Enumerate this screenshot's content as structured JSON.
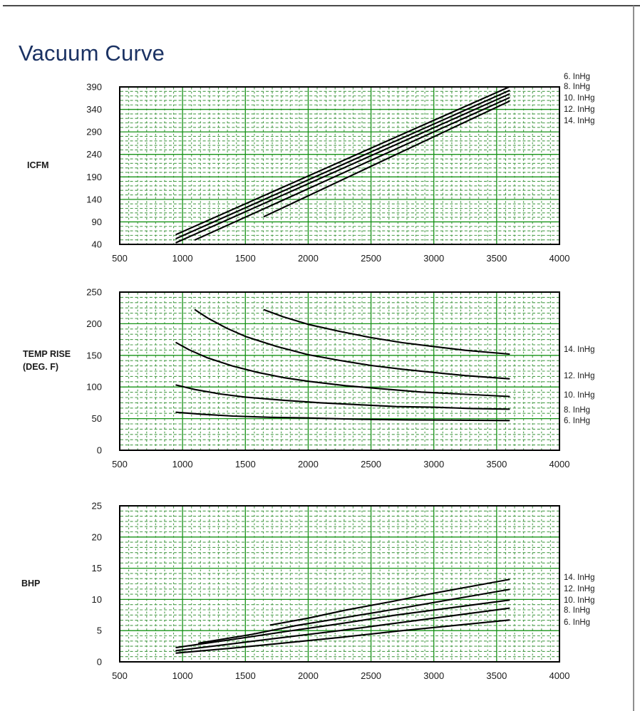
{
  "page": {
    "title": "Vacuum Curve",
    "title_color": "#1b3263"
  },
  "colors": {
    "grid_major": "#169216",
    "grid_minor": "#4d9e4d",
    "curve": "#000000",
    "plot_border": "#000000",
    "text": "#1a1a1a",
    "rule_top": "#4a4a4a",
    "rule_right": "#8f8f8f"
  },
  "chart_data": [
    {
      "type": "line",
      "ylabel_lines": [
        "ICFM"
      ],
      "xlabel": "",
      "xlim": [
        500,
        4000
      ],
      "ylim": [
        40,
        390
      ],
      "xticks": [
        500,
        1000,
        1500,
        2000,
        2500,
        3000,
        3500,
        4000
      ],
      "yticks": [
        40,
        90,
        140,
        190,
        240,
        290,
        340,
        390
      ],
      "grid": "green graph paper, solid majors + dashed minors",
      "legend_position": "right-top",
      "series": [
        {
          "label": "6. InHg",
          "points": [
            [
              950,
              62
            ],
            [
              3600,
              390
            ]
          ]
        },
        {
          "label": "8. InHg",
          "points": [
            [
              950,
              53
            ],
            [
              3600,
              382
            ]
          ]
        },
        {
          "label": "10. InHg",
          "points": [
            [
              950,
              44
            ],
            [
              3600,
              374
            ]
          ]
        },
        {
          "label": "12. InHg",
          "points": [
            [
              1100,
              50
            ],
            [
              3600,
              366
            ]
          ]
        },
        {
          "label": "14. InHg",
          "points": [
            [
              1650,
              102
            ],
            [
              3600,
              358
            ]
          ]
        }
      ]
    },
    {
      "type": "line",
      "ylabel_lines": [
        "TEMP RISE",
        "(DEG. F)"
      ],
      "xlabel": "",
      "xlim": [
        500,
        4000
      ],
      "ylim": [
        0,
        250
      ],
      "xticks": [
        500,
        1000,
        1500,
        2000,
        2500,
        3000,
        3500,
        4000
      ],
      "yticks": [
        0,
        50,
        100,
        150,
        200,
        250
      ],
      "grid": "green graph paper, solid majors + dashed minors",
      "legend_position": "right",
      "series": [
        {
          "label": "14. InHg",
          "points": [
            [
              1650,
              222
            ],
            [
              1800,
              211
            ],
            [
              2000,
              199
            ],
            [
              2250,
              188
            ],
            [
              2500,
              178
            ],
            [
              2750,
              170
            ],
            [
              3000,
              164
            ],
            [
              3250,
              158
            ],
            [
              3600,
              152
            ]
          ]
        },
        {
          "label": "12. InHg",
          "points": [
            [
              1100,
              222
            ],
            [
              1200,
              209
            ],
            [
              1350,
              193
            ],
            [
              1500,
              180
            ],
            [
              1750,
              164
            ],
            [
              2000,
              151
            ],
            [
              2250,
              142
            ],
            [
              2500,
              134
            ],
            [
              2750,
              128
            ],
            [
              3000,
              123
            ],
            [
              3250,
              118
            ],
            [
              3600,
              113
            ]
          ]
        },
        {
          "label": "10. InHg",
          "points": [
            [
              950,
              170
            ],
            [
              1050,
              159
            ],
            [
              1200,
              146
            ],
            [
              1400,
              133
            ],
            [
              1600,
              123
            ],
            [
              1800,
              115
            ],
            [
              2000,
              109
            ],
            [
              2300,
              102
            ],
            [
              2600,
              97
            ],
            [
              2900,
              92
            ],
            [
              3200,
              89
            ],
            [
              3600,
              85
            ]
          ]
        },
        {
          "label": "8. InHg",
          "points": [
            [
              950,
              103
            ],
            [
              1100,
              96
            ],
            [
              1300,
              89
            ],
            [
              1500,
              84
            ],
            [
              1800,
              79
            ],
            [
              2100,
              75
            ],
            [
              2400,
              72
            ],
            [
              2700,
              69
            ],
            [
              3000,
              68
            ],
            [
              3300,
              66
            ],
            [
              3600,
              65
            ]
          ]
        },
        {
          "label": "6. InHg",
          "points": [
            [
              950,
              60
            ],
            [
              1150,
              57
            ],
            [
              1400,
              54
            ],
            [
              1700,
              52
            ],
            [
              2000,
              51
            ],
            [
              2400,
              49
            ],
            [
              2800,
              48
            ],
            [
              3200,
              47.5
            ],
            [
              3600,
              47
            ]
          ]
        }
      ]
    },
    {
      "type": "line",
      "ylabel_lines": [
        "BHP"
      ],
      "xlabel": "",
      "xlim": [
        500,
        4000
      ],
      "ylim": [
        0,
        25
      ],
      "xticks": [
        500,
        1000,
        1500,
        2000,
        2500,
        3000,
        3500,
        4000
      ],
      "yticks": [
        0,
        5,
        10,
        15,
        20,
        25
      ],
      "grid": "green graph paper, solid majors + dashed minors",
      "legend_position": "right",
      "series": [
        {
          "label": "14. InHg",
          "points": [
            [
              1700,
              5.9
            ],
            [
              2000,
              7.0
            ],
            [
              2300,
              8.3
            ],
            [
              2650,
              9.6
            ],
            [
              3000,
              11.0
            ],
            [
              3300,
              12.1
            ],
            [
              3600,
              13.2
            ]
          ]
        },
        {
          "label": "12. InHg",
          "points": [
            [
              1130,
              3.0
            ],
            [
              1550,
              4.4
            ],
            [
              1900,
              5.8
            ],
            [
              2350,
              7.3
            ],
            [
              2800,
              8.8
            ],
            [
              3200,
              10.2
            ],
            [
              3600,
              11.6
            ]
          ]
        },
        {
          "label": "10. InHg",
          "points": [
            [
              950,
              2.3
            ],
            [
              1400,
              3.6
            ],
            [
              1800,
              4.8
            ],
            [
              2250,
              6.1
            ],
            [
              2700,
              7.5
            ],
            [
              3150,
              8.7
            ],
            [
              3600,
              9.9
            ]
          ]
        },
        {
          "label": "8. InHg",
          "points": [
            [
              950,
              1.8
            ],
            [
              1400,
              2.9
            ],
            [
              1800,
              3.9
            ],
            [
              2250,
              5.0
            ],
            [
              2700,
              6.2
            ],
            [
              3150,
              7.4
            ],
            [
              3600,
              8.6
            ]
          ]
        },
        {
          "label": "6. InHg",
          "points": [
            [
              950,
              1.4
            ],
            [
              1400,
              2.2
            ],
            [
              1800,
              3.0
            ],
            [
              2250,
              3.9
            ],
            [
              2700,
              4.9
            ],
            [
              3150,
              5.8
            ],
            [
              3600,
              6.7
            ]
          ]
        }
      ]
    }
  ]
}
